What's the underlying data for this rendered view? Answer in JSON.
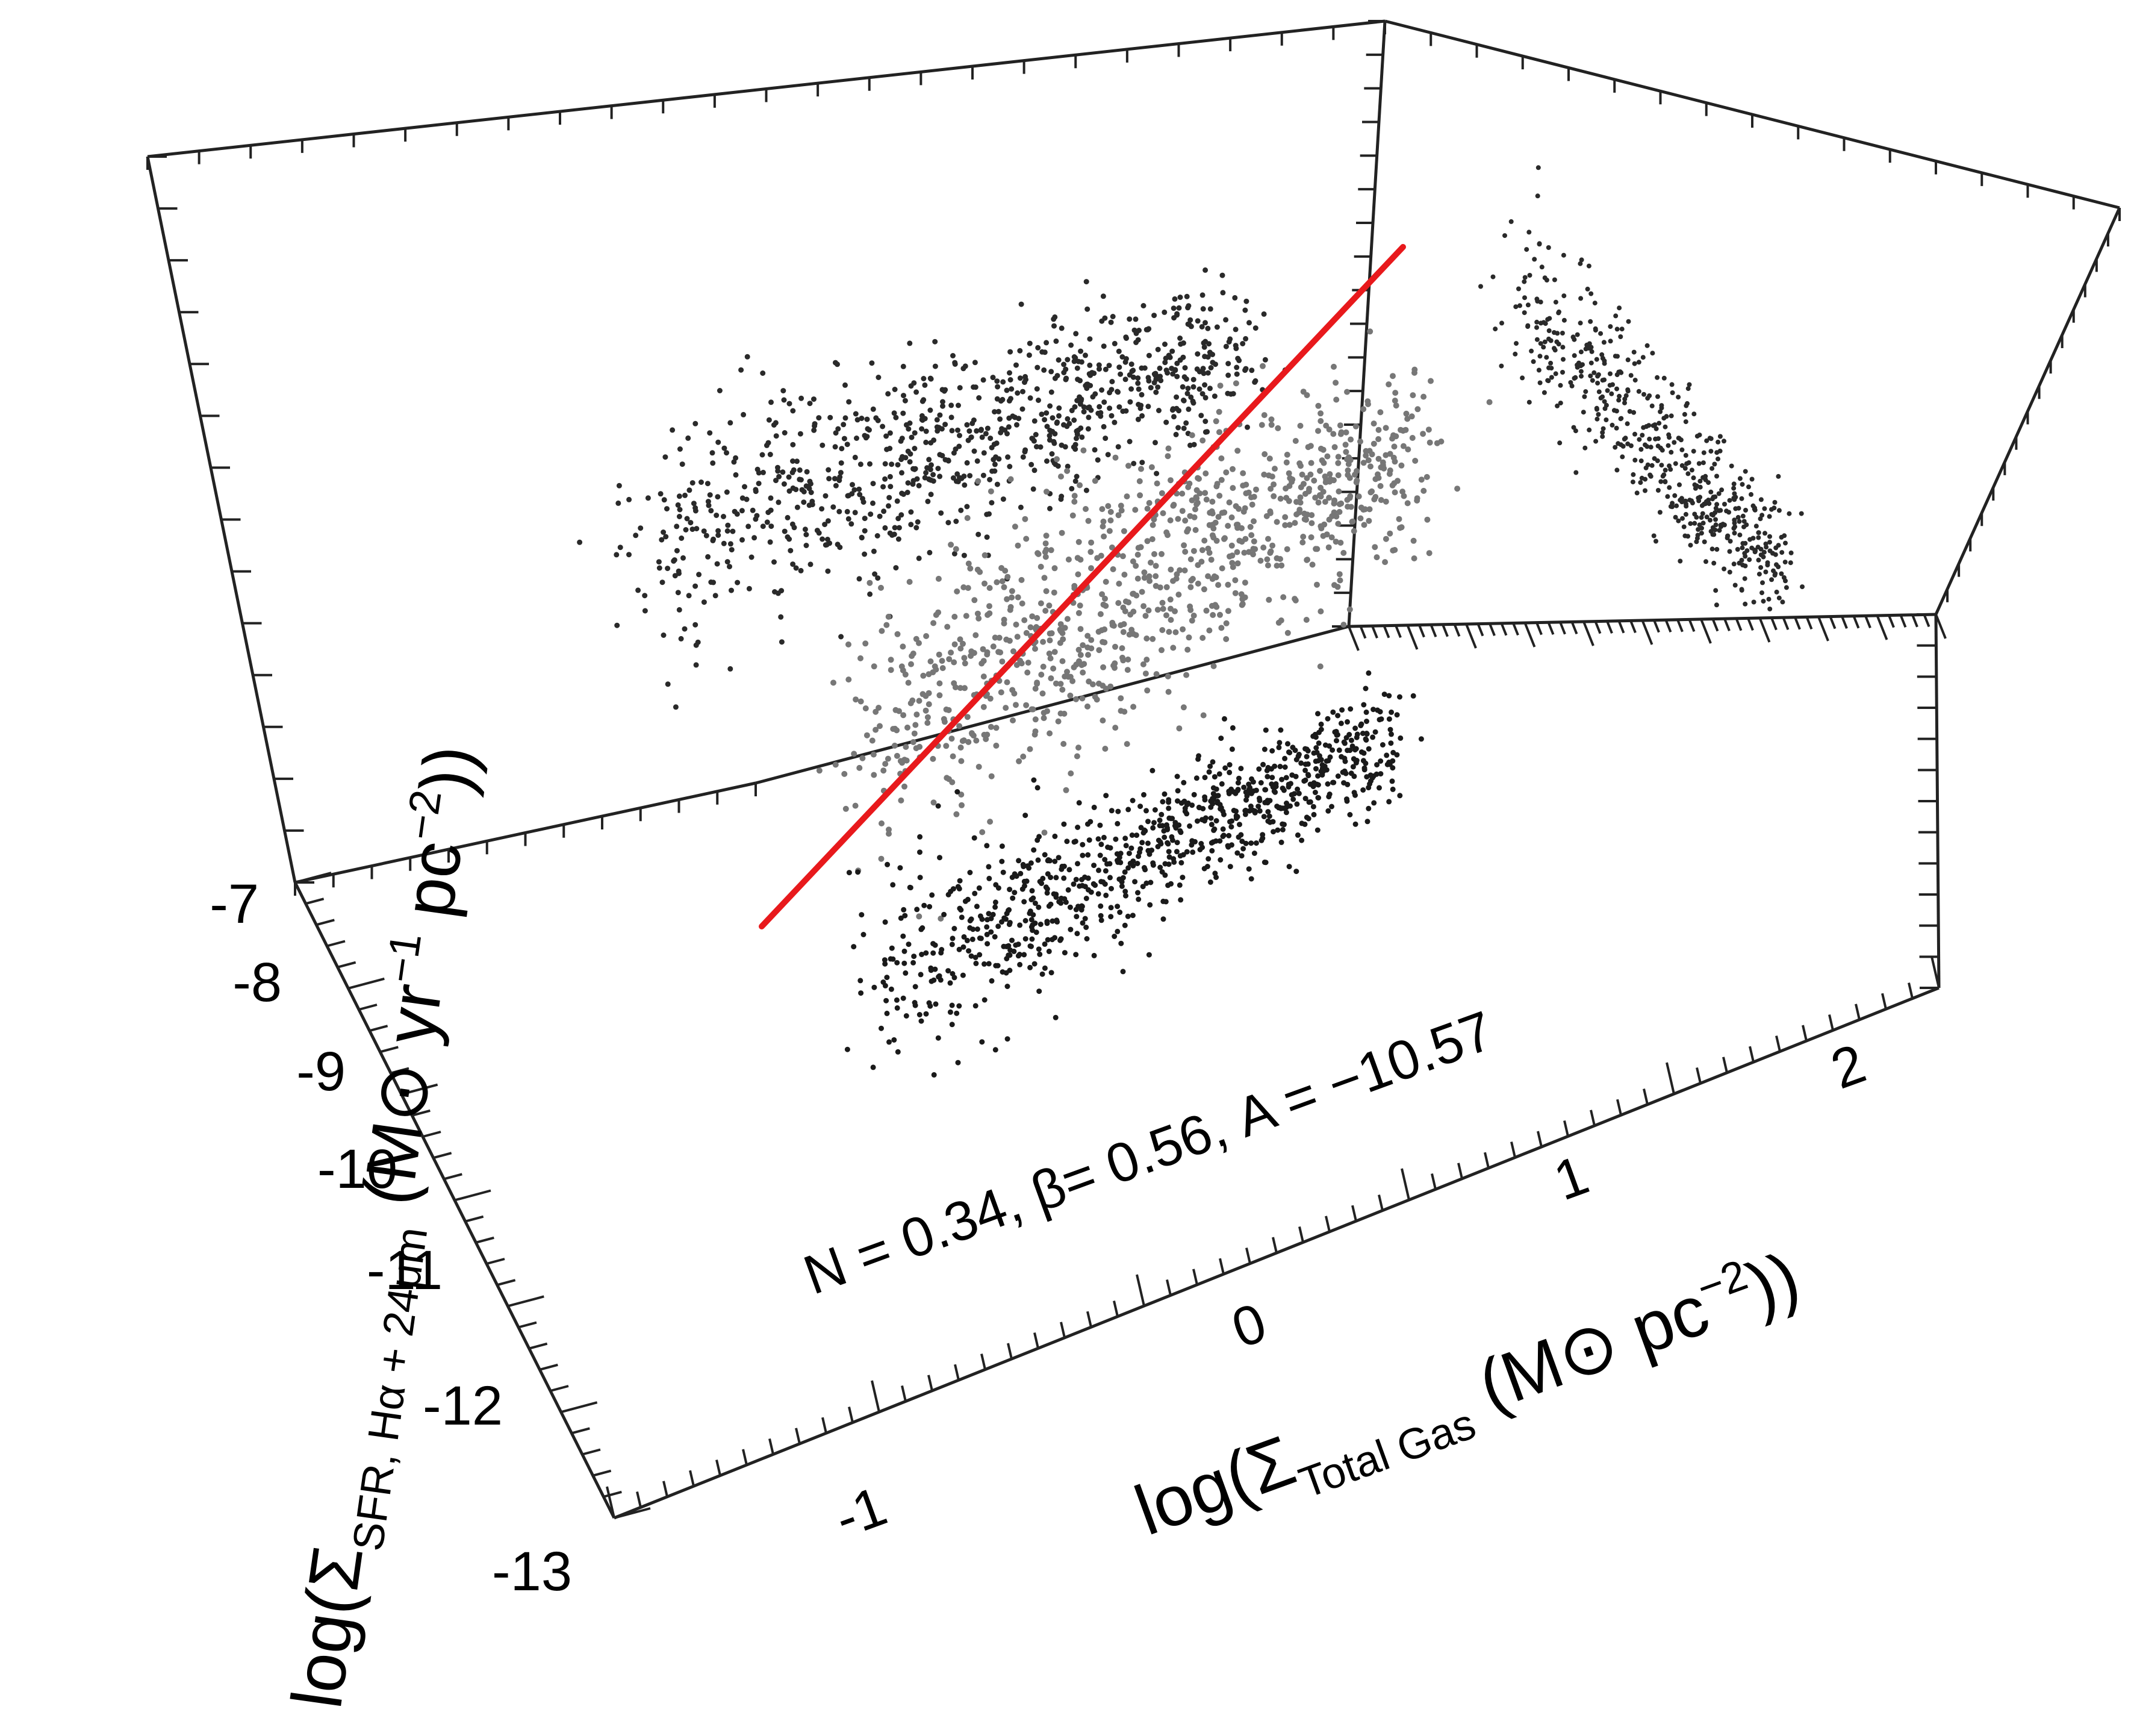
{
  "chart_data": {
    "type": "scatter",
    "dimensions": 3,
    "title": "",
    "x_axis": {
      "ticks": [
        "-1",
        "0",
        "1",
        "2"
      ]
    },
    "y_axis": {
      "ticks": [
        "-7",
        "-8",
        "-9",
        "-10",
        "-11",
        "-12",
        "-13"
      ]
    },
    "z_axis": {
      "ticks": []
    },
    "xlabel": {
      "pre": "log(Σ",
      "sub": "Total Gas",
      "post": " (M⊙ pc",
      "sup": "−2",
      "end": "))"
    },
    "ylabel": {
      "pre": "log(Σ",
      "sub": "SFR, Hα + 24μm",
      "post": " (M⊙ yr",
      "sup1": "−1",
      "mid": " pc",
      "sup2": "−2",
      "end": "))"
    },
    "annotation": "N = 0.34, β= 0.56, A = −10.57",
    "fit": {
      "N": 0.34,
      "beta": 0.56,
      "A": -10.57,
      "color": "#e8191c"
    },
    "series": [
      {
        "projection": "3d",
        "color": "#777777"
      },
      {
        "projection": "x-y",
        "color": "#2a2a2a"
      },
      {
        "projection": "x-z",
        "color": "#1a1a1a"
      },
      {
        "projection": "y-z",
        "color": "#2a2a2a"
      }
    ]
  }
}
